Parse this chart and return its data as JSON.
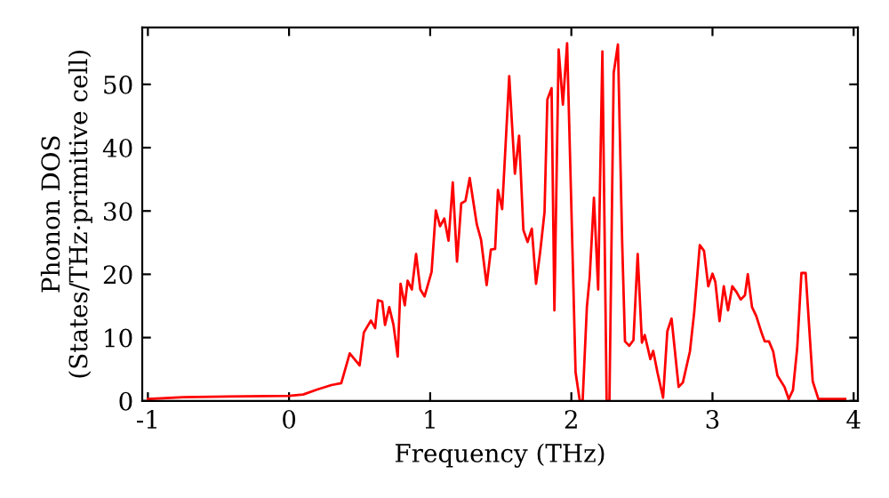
{
  "chart_data": {
    "type": "line",
    "xlabel": "Frequency (THz)",
    "ylabel": "Phonon DOS\n(States/THz·primitive cell)",
    "xlim": [
      -1.04,
      4.03
    ],
    "ylim": [
      0,
      59
    ],
    "xticks": [
      -1,
      0,
      1,
      2,
      3,
      4
    ],
    "yticks": [
      0,
      10,
      20,
      30,
      40,
      50
    ],
    "grid": false,
    "legend": false,
    "marker": "none",
    "line_style": "solid",
    "series": [
      {
        "color": "#ff0000",
        "x": [
          -1,
          -0.75,
          0,
          0.1,
          0.2,
          0.3,
          0.37,
          0.43,
          0.5,
          0.53,
          0.58,
          0.61,
          0.63,
          0.66,
          0.68,
          0.71,
          0.74,
          0.77,
          0.79,
          0.82,
          0.84,
          0.87,
          0.9,
          0.93,
          0.96,
          1.01,
          1.04,
          1.07,
          1.1,
          1.13,
          1.16,
          1.19,
          1.22,
          1.25,
          1.28,
          1.33,
          1.36,
          1.4,
          1.43,
          1.46,
          1.48,
          1.51,
          1.56,
          1.6,
          1.63,
          1.66,
          1.69,
          1.72,
          1.75,
          1.78,
          1.81,
          1.83,
          1.86,
          1.88,
          1.91,
          1.94,
          1.97,
          2.0,
          2.03,
          2.06,
          2.08,
          2.11,
          2.13,
          2.16,
          2.19,
          2.22,
          2.25,
          2.27,
          2.3,
          2.33,
          2.36,
          2.38,
          2.41,
          2.44,
          2.47,
          2.5,
          2.52,
          2.56,
          2.58,
          2.61,
          2.65,
          2.68,
          2.71,
          2.76,
          2.79,
          2.84,
          2.87,
          2.91,
          2.94,
          2.97,
          3.0,
          3.02,
          3.05,
          3.08,
          3.11,
          3.14,
          3.17,
          3.2,
          3.23,
          3.25,
          3.28,
          3.31,
          3.35,
          3.37,
          3.4,
          3.43,
          3.46,
          3.51,
          3.54,
          3.57,
          3.6,
          3.63,
          3.66,
          3.71,
          3.75,
          3.94
        ],
        "values": [
          0.3,
          0.6,
          0.8,
          1,
          1.8,
          2.5,
          2.8,
          7.5,
          5.6,
          10.8,
          12.7,
          11.5,
          15.9,
          15.7,
          12.0,
          14.8,
          12.0,
          7.0,
          18.5,
          15.1,
          19.0,
          17.6,
          23.2,
          17.6,
          16.5,
          20.4,
          30.1,
          27.6,
          28.8,
          25.3,
          34.5,
          22.0,
          31.2,
          31.6,
          35.2,
          27.9,
          25.5,
          18.3,
          23.9,
          24.0,
          33.3,
          30.3,
          51.3,
          35.9,
          41.9,
          27.0,
          25.1,
          27.2,
          18.5,
          23.7,
          29.8,
          47.6,
          49.4,
          14.3,
          55.5,
          46.8,
          56.5,
          30.7,
          4.5,
          0,
          0,
          14.8,
          19.5,
          32.1,
          17.6,
          55.2,
          0,
          0,
          51.8,
          56.3,
          25.1,
          9.4,
          8.7,
          9.6,
          23.2,
          9.2,
          10.4,
          6.6,
          7.9,
          4.5,
          0.5,
          11.0,
          13.0,
          2.2,
          2.9,
          7.8,
          13.9,
          24.6,
          23.7,
          18.1,
          20.1,
          18.8,
          12.6,
          18.1,
          14.3,
          18.1,
          17.2,
          16.0,
          16.7,
          20.0,
          14.8,
          13.4,
          10.6,
          9.4,
          9.4,
          7.8,
          4.0,
          2.2,
          0.3,
          1.7,
          8.3,
          20.2,
          20.2,
          3.1,
          0.3,
          0.3
        ]
      }
    ]
  }
}
